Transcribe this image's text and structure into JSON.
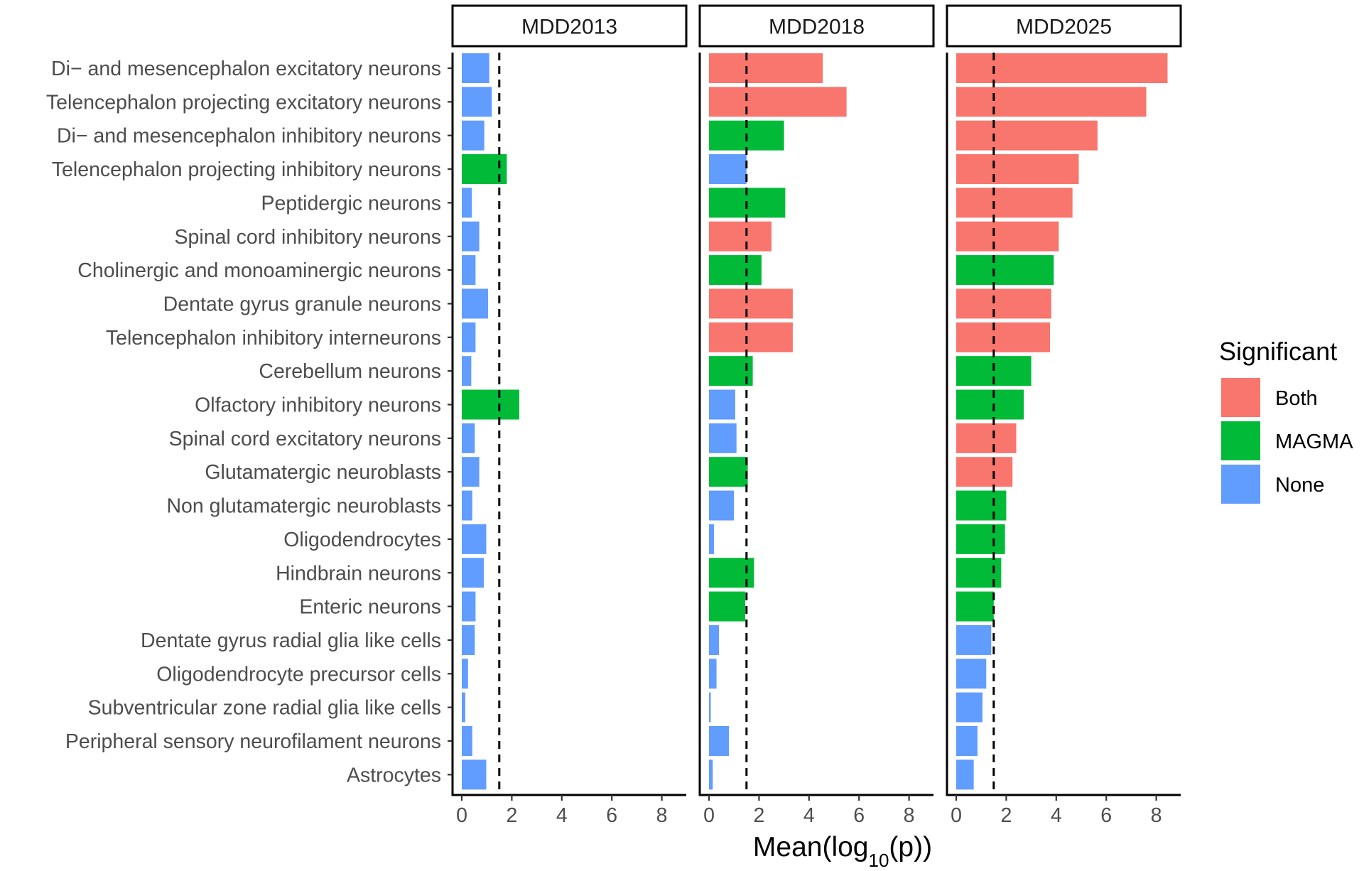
{
  "chart_data": {
    "type": "bar",
    "orientation": "horizontal",
    "xlabel_prefix": "Mean(log",
    "xlabel_sub": "10",
    "xlabel_suffix": "(p))",
    "xlim": [
      0,
      8.8
    ],
    "xticks": [
      0,
      2,
      4,
      6,
      8
    ],
    "threshold_line": 1.5,
    "categories": [
      "Di− and mesencephalon excitatory neurons",
      "Telencephalon projecting excitatory neurons",
      "Di− and mesencephalon inhibitory neurons",
      "Telencephalon projecting inhibitory neurons",
      "Peptidergic neurons",
      "Spinal cord inhibitory neurons",
      "Cholinergic and monoaminergic neurons",
      "Dentate gyrus granule neurons",
      "Telencephalon inhibitory interneurons",
      "Cerebellum neurons",
      "Olfactory inhibitory neurons",
      "Spinal cord excitatory neurons",
      "Glutamatergic neuroblasts",
      "Non glutamatergic neuroblasts",
      "Oligodendrocytes",
      "Hindbrain neurons",
      "Enteric neurons",
      "Dentate gyrus radial glia like cells",
      "Oligodendrocyte precursor cells",
      "Subventricular zone radial glia like cells",
      "Peripheral sensory neurofilament neurons",
      "Astrocytes"
    ],
    "legend": {
      "title": "Significant",
      "entries": [
        {
          "name": "Both",
          "color": "#F8766D"
        },
        {
          "name": "MAGMA",
          "color": "#00BA38"
        },
        {
          "name": "None",
          "color": "#619CFF"
        }
      ]
    },
    "facets": [
      {
        "title": "MDD2013",
        "values": [
          1.1,
          1.2,
          0.9,
          1.8,
          0.4,
          0.7,
          0.55,
          1.05,
          0.55,
          0.38,
          2.3,
          0.52,
          0.7,
          0.42,
          0.98,
          0.88,
          0.55,
          0.52,
          0.25,
          0.14,
          0.42,
          0.98
        ],
        "significance": [
          "None",
          "None",
          "None",
          "MAGMA",
          "None",
          "None",
          "None",
          "None",
          "None",
          "None",
          "MAGMA",
          "None",
          "None",
          "None",
          "None",
          "None",
          "None",
          "None",
          "None",
          "None",
          "None",
          "None"
        ]
      },
      {
        "title": "MDD2018",
        "values": [
          4.55,
          5.5,
          3.0,
          1.5,
          3.05,
          2.5,
          2.1,
          3.35,
          3.35,
          1.75,
          1.05,
          1.1,
          1.55,
          1.0,
          0.2,
          1.8,
          1.45,
          0.4,
          0.3,
          0.07,
          0.8,
          0.15
        ],
        "significance": [
          "Both",
          "Both",
          "MAGMA",
          "None",
          "MAGMA",
          "Both",
          "MAGMA",
          "Both",
          "Both",
          "MAGMA",
          "None",
          "None",
          "MAGMA",
          "None",
          "None",
          "MAGMA",
          "MAGMA",
          "None",
          "None",
          "None",
          "None",
          "None"
        ]
      },
      {
        "title": "MDD2025",
        "values": [
          8.45,
          7.6,
          5.65,
          4.9,
          4.65,
          4.1,
          3.9,
          3.8,
          3.75,
          3.0,
          2.7,
          2.4,
          2.25,
          2.0,
          1.95,
          1.8,
          1.5,
          1.4,
          1.2,
          1.05,
          0.85,
          0.7
        ],
        "significance": [
          "Both",
          "Both",
          "Both",
          "Both",
          "Both",
          "Both",
          "MAGMA",
          "Both",
          "Both",
          "MAGMA",
          "MAGMA",
          "Both",
          "Both",
          "MAGMA",
          "MAGMA",
          "MAGMA",
          "MAGMA",
          "None",
          "None",
          "None",
          "None",
          "None"
        ]
      }
    ]
  }
}
